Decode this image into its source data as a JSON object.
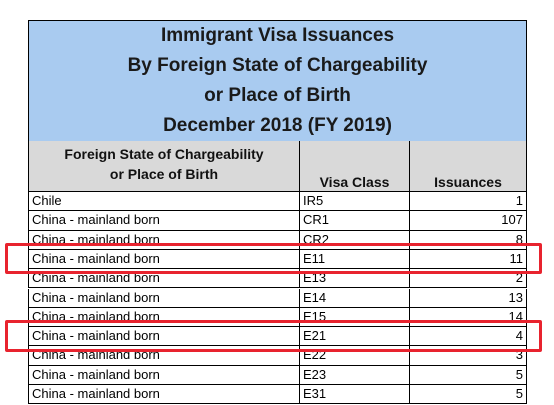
{
  "title": {
    "lines": [
      "Immigrant Visa Issuances",
      "By Foreign State of Chargeability",
      "or Place of Birth",
      "December 2018 (FY 2019)"
    ]
  },
  "table": {
    "columns": [
      [
        "Foreign State of Chargeability",
        "or Place of Birth"
      ],
      [
        "Visa Class"
      ],
      [
        "Issuances"
      ]
    ],
    "rows": [
      [
        "Chile",
        "IR5",
        1
      ],
      [
        "China - mainland born",
        "CR1",
        107
      ],
      [
        "China - mainland born",
        "CR2",
        8
      ],
      [
        "China - mainland born",
        "E11",
        11
      ],
      [
        "China - mainland born",
        "E13",
        2
      ],
      [
        "China - mainland born",
        "E14",
        13
      ],
      [
        "China - mainland born",
        "E15",
        14
      ],
      [
        "China - mainland born",
        "E21",
        4
      ],
      [
        "China - mainland born",
        "E22",
        3
      ],
      [
        "China - mainland born",
        "E23",
        5
      ],
      [
        "China - mainland born",
        "E31",
        5
      ]
    ]
  }
}
